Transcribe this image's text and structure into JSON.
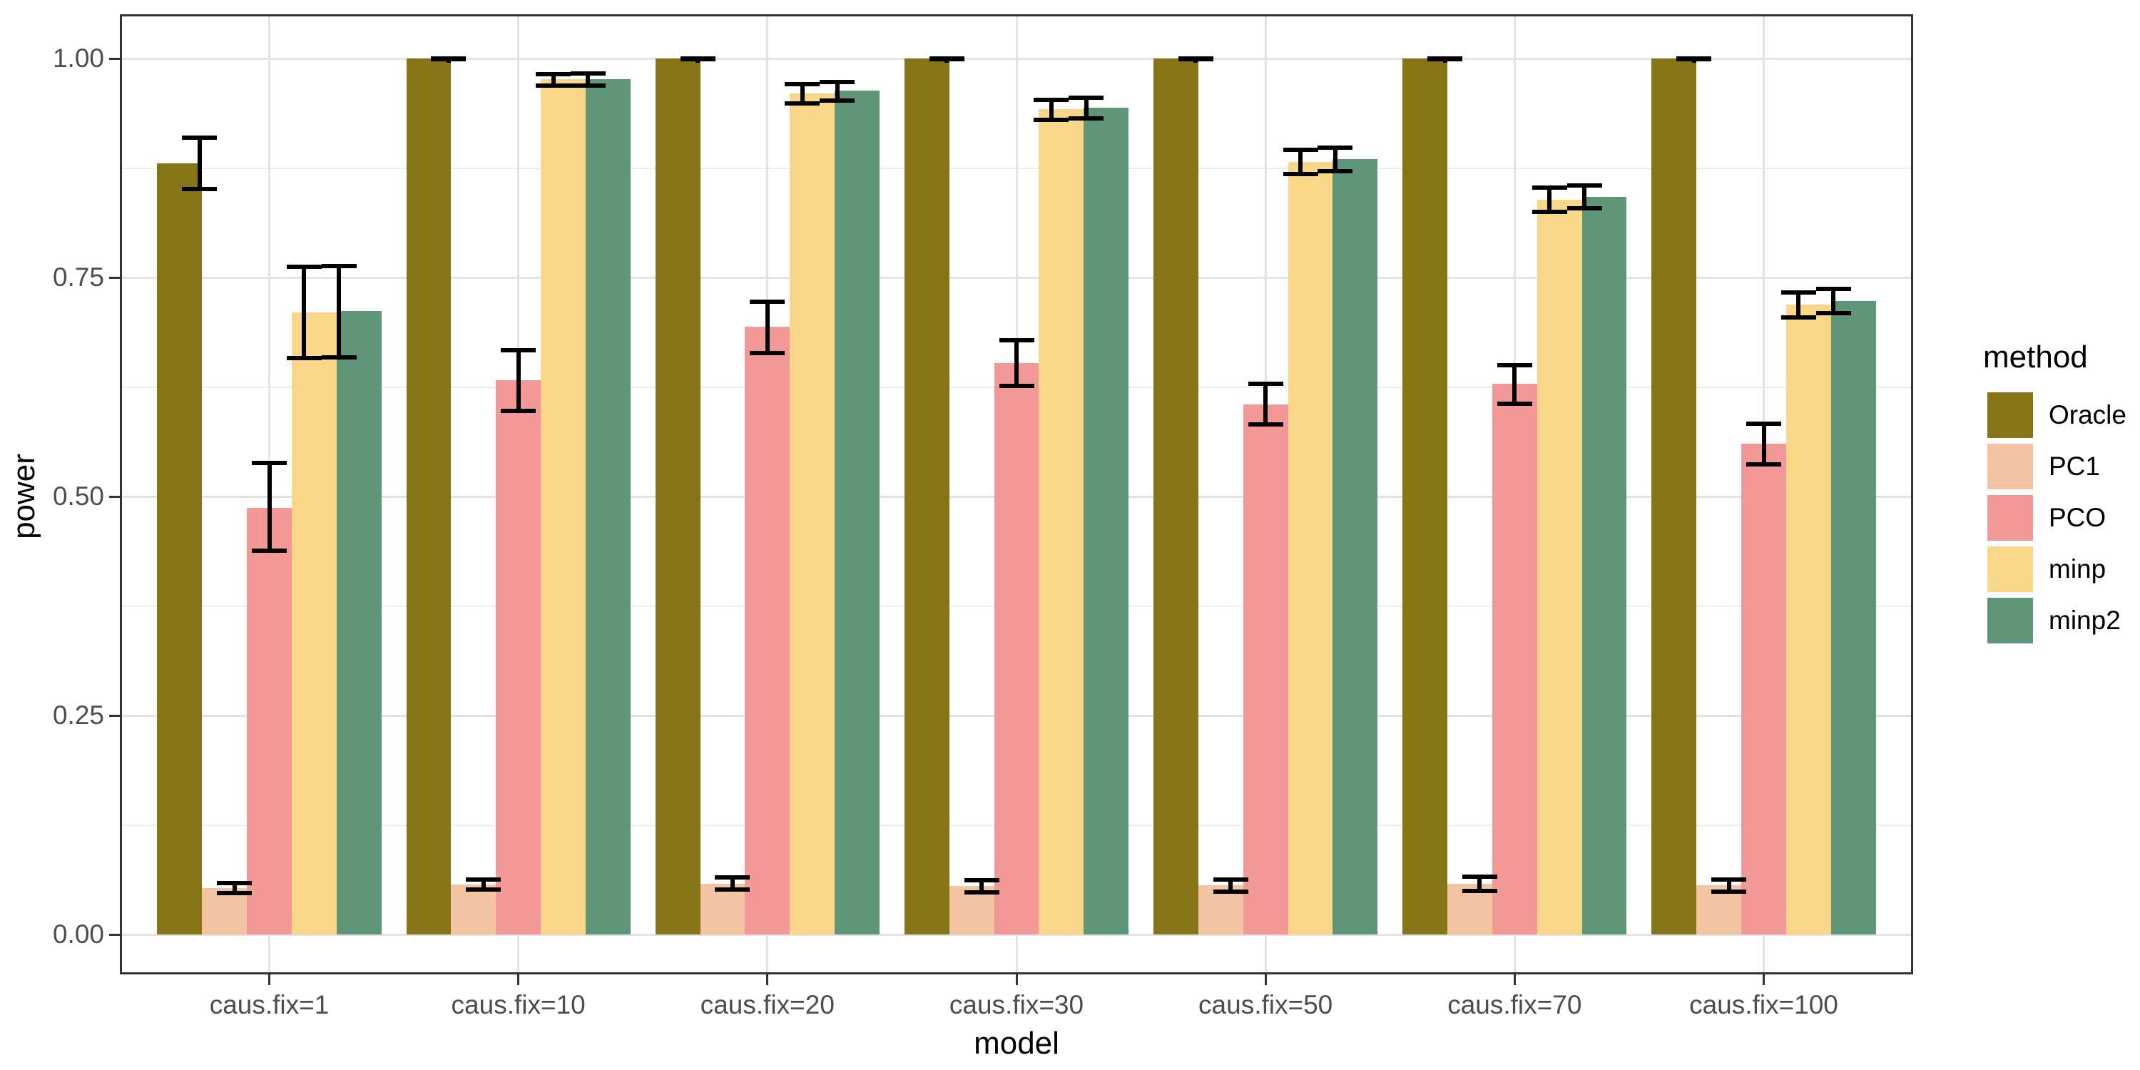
{
  "chart_data": {
    "type": "bar",
    "title": "",
    "xlabel": "model",
    "ylabel": "power",
    "legend_title": "method",
    "legend_position": "right",
    "grid": "major+minor",
    "ylim": [
      0,
      1
    ],
    "y_major_ticks": [
      0,
      0.25,
      0.5,
      0.75,
      1
    ],
    "y_tick_labels": [
      "0.00",
      "0.25",
      "0.50",
      "0.75",
      "1.00"
    ],
    "y_minor_ticks": [
      0.125,
      0.375,
      0.625,
      0.875
    ],
    "categories": [
      "caus.fix=1",
      "caus.fix=10",
      "caus.fix=20",
      "caus.fix=30",
      "caus.fix=50",
      "caus.fix=70",
      "caus.fix=100"
    ],
    "series": [
      {
        "name": "Oracle",
        "color": "#877416",
        "values": [
          0.88,
          1.0,
          1.0,
          1.0,
          1.0,
          1.0,
          1.0
        ],
        "err_lo": [
          0.851,
          0.999,
          0.999,
          0.999,
          0.999,
          0.999,
          0.999
        ],
        "err_hi": [
          0.91,
          1.0,
          1.0,
          1.0,
          1.0,
          1.0,
          1.0
        ]
      },
      {
        "name": "PC1",
        "color": "#F3C4A4",
        "values": [
          0.053,
          0.057,
          0.058,
          0.055,
          0.056,
          0.058,
          0.056
        ],
        "err_lo": [
          0.047,
          0.051,
          0.051,
          0.048,
          0.049,
          0.05,
          0.049
        ],
        "err_hi": [
          0.059,
          0.063,
          0.065,
          0.062,
          0.063,
          0.066,
          0.063
        ]
      },
      {
        "name": "PCO",
        "color": "#F29998",
        "values": [
          0.487,
          0.633,
          0.694,
          0.652,
          0.605,
          0.629,
          0.56
        ],
        "err_lo": [
          0.438,
          0.598,
          0.664,
          0.626,
          0.582,
          0.606,
          0.537
        ],
        "err_hi": [
          0.538,
          0.667,
          0.722,
          0.678,
          0.629,
          0.65,
          0.583
        ]
      },
      {
        "name": "minp",
        "color": "#FAD689",
        "values": [
          0.71,
          0.976,
          0.96,
          0.942,
          0.882,
          0.839,
          0.719
        ],
        "err_lo": [
          0.658,
          0.969,
          0.949,
          0.93,
          0.868,
          0.825,
          0.704
        ],
        "err_hi": [
          0.762,
          0.982,
          0.971,
          0.953,
          0.896,
          0.853,
          0.733
        ]
      },
      {
        "name": "minp2",
        "color": "#5F9678",
        "values": [
          0.712,
          0.976,
          0.963,
          0.944,
          0.885,
          0.842,
          0.723
        ],
        "err_lo": [
          0.659,
          0.969,
          0.952,
          0.932,
          0.871,
          0.829,
          0.709
        ],
        "err_hi": [
          0.763,
          0.983,
          0.973,
          0.955,
          0.898,
          0.855,
          0.737
        ]
      }
    ]
  },
  "colors": {
    "background": "#FFFFFF",
    "panel_border": "#333333",
    "grid_major": "#E3E3E3",
    "grid_minor": "#EDEDED",
    "axis_text": "#4D4D4D",
    "axis_title": "#000000",
    "tick_mark": "#333333",
    "error_bar": "#000000",
    "legend_text": "#000000"
  }
}
